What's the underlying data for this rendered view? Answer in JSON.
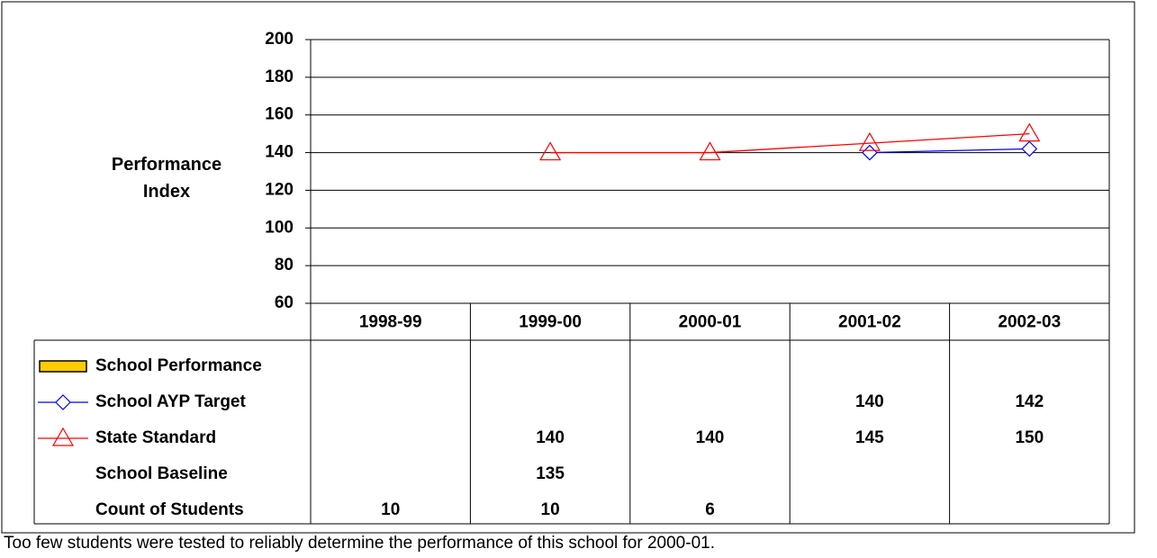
{
  "chart_data": {
    "type": "line",
    "y_axis_label": "Performance Index",
    "categories": [
      "1998-99",
      "1999-00",
      "2000-01",
      "2001-02",
      "2002-03"
    ],
    "ylim": [
      60,
      200
    ],
    "yticks": [
      60,
      80,
      100,
      120,
      140,
      160,
      180,
      200
    ],
    "grid": true,
    "series": [
      {
        "name": "School Performance",
        "type": "bar",
        "color": "#ffcc00",
        "values": [
          null,
          null,
          null,
          null,
          null
        ]
      },
      {
        "name": "School AYP Target",
        "type": "line",
        "marker": "diamond",
        "color": "#0000ff",
        "values": [
          null,
          null,
          null,
          140,
          142
        ]
      },
      {
        "name": "State Standard",
        "type": "line",
        "marker": "triangle",
        "color": "#ff0000",
        "values": [
          null,
          140,
          140,
          145,
          150
        ]
      },
      {
        "name": "School Baseline",
        "type": "table",
        "values": [
          null,
          135,
          null,
          null,
          null
        ]
      },
      {
        "name": "Count of Students",
        "type": "table",
        "values": [
          10,
          10,
          6,
          null,
          null
        ]
      }
    ],
    "footnote": "Too few students were tested to reliably determine the performance of this school for 2000-01."
  }
}
